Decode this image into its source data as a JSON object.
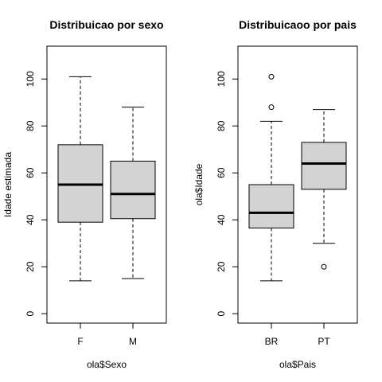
{
  "chart_data": [
    {
      "type": "box",
      "title": "Distribuicao por sexo",
      "xlabel": "ola$Sexo",
      "ylabel": "Idade estimada",
      "ylim": [
        -4,
        114
      ],
      "yticks": [
        0,
        20,
        40,
        60,
        80,
        100
      ],
      "box_fill": "#d3d3d3",
      "categories": [
        "F",
        "M"
      ],
      "boxes": [
        {
          "category": "F",
          "whisker_low": 14,
          "q1": 39,
          "median": 55,
          "q3": 72,
          "whisker_high": 101,
          "outliers": []
        },
        {
          "category": "M",
          "whisker_low": 15,
          "q1": 40.5,
          "median": 51,
          "q3": 65,
          "whisker_high": 88,
          "outliers": []
        }
      ]
    },
    {
      "type": "box",
      "title": "Distribuicaoo por pais",
      "xlabel": "ola$Pais",
      "ylabel": "ola$Idade",
      "ylim": [
        -4,
        114
      ],
      "yticks": [
        0,
        20,
        40,
        60,
        80,
        100
      ],
      "box_fill": "#d3d3d3",
      "categories": [
        "BR",
        "PT"
      ],
      "boxes": [
        {
          "category": "BR",
          "whisker_low": 14,
          "q1": 36.5,
          "median": 43,
          "q3": 55,
          "whisker_high": 82,
          "outliers": [
            88,
            101
          ]
        },
        {
          "category": "PT",
          "whisker_low": 30,
          "q1": 53,
          "median": 64,
          "q3": 73,
          "whisker_high": 87,
          "outliers": [
            20
          ]
        }
      ]
    }
  ]
}
